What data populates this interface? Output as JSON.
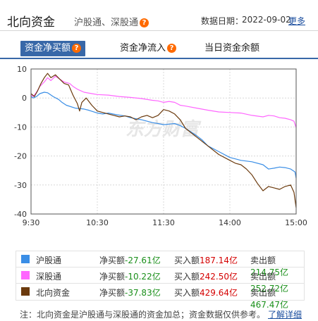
{
  "header": {
    "title": "北向资金",
    "subtitle": "沪股通、深股通",
    "date_label": "数据日期：",
    "date_value": "2022-09-02",
    "more_link": "更多"
  },
  "tabs": [
    {
      "label": "资金净买额",
      "active": true,
      "has_help": true
    },
    {
      "label": "资金净流入",
      "active": false,
      "has_help": true
    },
    {
      "label": "当日资金余额",
      "active": false,
      "has_help": false
    }
  ],
  "chart_data": {
    "type": "line",
    "watermark": "东方财富",
    "x_ticks": [
      "9:30",
      "10:30",
      "11:30",
      "14:00",
      "15:00"
    ],
    "y_ticks": [
      10,
      0,
      -10,
      -20,
      -30,
      -40
    ],
    "ylim": [
      -40,
      10
    ],
    "grid": true,
    "series": [
      {
        "name": "沪股通",
        "color": "#3a8ee6",
        "x": [
          0,
          2,
          5,
          8,
          12,
          15,
          20,
          25,
          28,
          32,
          40,
          48,
          52,
          60,
          65,
          70,
          78,
          85,
          90,
          100,
          110,
          115,
          120,
          125,
          130,
          135,
          140,
          150,
          155,
          160,
          170,
          180,
          185,
          190,
          200,
          210,
          215,
          220,
          225,
          230,
          235,
          239,
          240
        ],
        "values": [
          0.5,
          0,
          0.5,
          1.5,
          2,
          1.8,
          0.5,
          -0.5,
          -1.5,
          -2.5,
          -3.5,
          -3.8,
          -4.2,
          -5.2,
          -5.5,
          -5.2,
          -5.8,
          -6.2,
          -6.8,
          -7.5,
          -8.5,
          -8.8,
          -9.2,
          -9.0,
          -8.8,
          -9.5,
          -10.5,
          -13.0,
          -14.5,
          -16.5,
          -18.5,
          -20.5,
          -21.0,
          -21.5,
          -22.0,
          -23.0,
          -24.5,
          -24.2,
          -23.8,
          -24.0,
          -24.5,
          -25.5,
          -27.61
        ]
      },
      {
        "name": "深股通",
        "color": "#ff66ff",
        "x": [
          0,
          2,
          5,
          8,
          12,
          15,
          18,
          22,
          26,
          30,
          35,
          38,
          42,
          48,
          55,
          60,
          70,
          80,
          90,
          100,
          110,
          115,
          120,
          125,
          130,
          135,
          140,
          150,
          160,
          170,
          180,
          190,
          200,
          210,
          215,
          220,
          225,
          230,
          235,
          238,
          240
        ],
        "values": [
          1.0,
          0.5,
          2.0,
          4.0,
          5.5,
          7.0,
          6.0,
          7.5,
          6.5,
          5.5,
          5.0,
          4.0,
          3.0,
          2.0,
          1.5,
          1.2,
          1.0,
          0.5,
          0.2,
          -0.2,
          -0.8,
          -1.0,
          -1.5,
          -1.2,
          -1.5,
          -2.5,
          -2.8,
          -3.5,
          -4.2,
          -4.8,
          -5.0,
          -5.2,
          -6.0,
          -6.5,
          -6.0,
          -6.2,
          -6.8,
          -7.0,
          -7.5,
          -8.0,
          -10.22
        ]
      },
      {
        "name": "北向资金",
        "color": "#6b3a0d",
        "x": [
          0,
          3,
          6,
          9,
          12,
          15,
          18,
          22,
          26,
          30,
          34,
          38,
          42,
          44,
          46,
          50,
          55,
          60,
          65,
          70,
          75,
          80,
          85,
          90,
          95,
          100,
          105,
          110,
          115,
          120,
          125,
          130,
          135,
          140,
          150,
          160,
          170,
          180,
          185,
          190,
          195,
          200,
          205,
          210,
          215,
          220,
          225,
          230,
          235,
          238,
          240
        ],
        "values": [
          1.5,
          0.5,
          2.5,
          5.0,
          7.0,
          8.5,
          7.0,
          8.0,
          6.5,
          5.0,
          4.5,
          1.0,
          -2.0,
          -4.5,
          -1.5,
          0.0,
          -2.5,
          -4.5,
          -5.0,
          -5.5,
          -6.0,
          -6.5,
          -6.2,
          -6.5,
          -7.5,
          -6.5,
          -6.0,
          -6.8,
          -6.0,
          -4.0,
          -4.5,
          -5.5,
          -7.5,
          -10.5,
          -13.5,
          -16.5,
          -19.5,
          -21.5,
          -22.5,
          -23.0,
          -24.5,
          -26.5,
          -29.5,
          -32.0,
          -30.5,
          -31.0,
          -31.5,
          -30.5,
          -30.0,
          -32.5,
          -37.83
        ]
      }
    ]
  },
  "legend_rows": [
    {
      "name": "沪股通",
      "color": "#3a8ee6",
      "net_label": "净买额",
      "net_value": "-27.61亿",
      "buy_label": "买入额",
      "buy_value": "187.14亿",
      "sell_label": "卖出额",
      "sell_value": "214.75亿"
    },
    {
      "name": "深股通",
      "color": "#ff66ff",
      "net_label": "净买额",
      "net_value": "-10.22亿",
      "buy_label": "买入额",
      "buy_value": "242.50亿",
      "sell_label": "卖出额",
      "sell_value": "252.72亿"
    },
    {
      "name": "北向资金",
      "color": "#6b3a0d",
      "net_label": "净买额",
      "net_value": "-37.83亿",
      "buy_label": "买入额",
      "buy_value": "429.64亿",
      "sell_label": "卖出额",
      "sell_value": "467.47亿"
    }
  ],
  "footer": {
    "note": "注：北向资金是沪股通与深股通的资金加总；资金数据仅供参考。",
    "detail_link": "了解详细"
  }
}
